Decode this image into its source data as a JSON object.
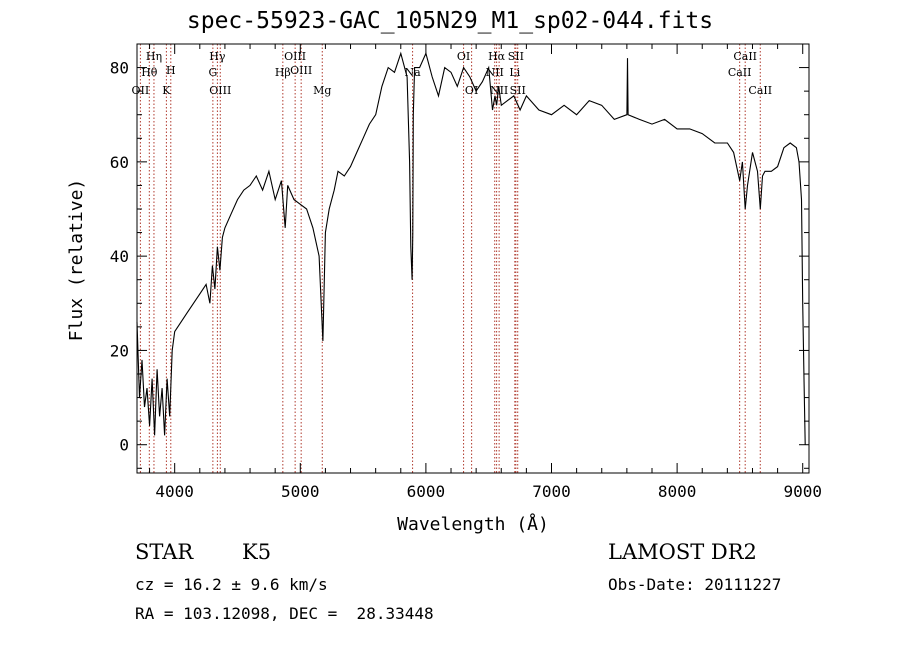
{
  "title": "spec-55923-GAC_105N29_M1_sp02-044.fits",
  "chart_data": {
    "type": "line",
    "title": "spec-55923-GAC_105N29_M1_sp02-044.fits",
    "xlabel": "Wavelength (Å)",
    "ylabel": "Flux (relative)",
    "xlim": [
      3700,
      9050
    ],
    "ylim": [
      -6,
      85
    ],
    "xticks": [
      4000,
      5000,
      6000,
      7000,
      8000,
      9000
    ],
    "yticks": [
      0,
      20,
      40,
      60,
      80
    ],
    "grid": false,
    "series": [
      {
        "x": [
          3700,
          3720,
          3740,
          3760,
          3780,
          3800,
          3820,
          3840,
          3860,
          3880,
          3900,
          3920,
          3940,
          3960,
          3980,
          4000,
          4050,
          4100,
          4150,
          4200,
          4250,
          4280,
          4300,
          4320,
          4340,
          4360,
          4380,
          4400,
          4450,
          4500,
          4550,
          4600,
          4650,
          4700,
          4750,
          4800,
          4850,
          4880,
          4900,
          4950,
          5000,
          5050,
          5100,
          5150,
          5170,
          5180,
          5200,
          5230,
          5270,
          5300,
          5350,
          5400,
          5450,
          5500,
          5550,
          5600,
          5650,
          5700,
          5750,
          5800,
          5850,
          5870,
          5880,
          5890,
          5896,
          5900,
          5910,
          5950,
          6000,
          6050,
          6100,
          6150,
          6200,
          6250,
          6300,
          6350,
          6400,
          6450,
          6500,
          6530,
          6550,
          6563,
          6580,
          6600,
          6650,
          6700,
          6750,
          6800,
          6900,
          7000,
          7100,
          7200,
          7300,
          7400,
          7500,
          7600,
          7605,
          7610,
          7700,
          7800,
          7900,
          8000,
          8100,
          8200,
          8300,
          8400,
          8450,
          8498,
          8520,
          8542,
          8560,
          8600,
          8640,
          8662,
          8680,
          8700,
          8750,
          8800,
          8850,
          8900,
          8950,
          8970,
          8990,
          9000,
          9010,
          9020
        ],
        "y": [
          26,
          10,
          18,
          8,
          12,
          4,
          14,
          2,
          16,
          6,
          12,
          2,
          14,
          6,
          20,
          24,
          26,
          28,
          30,
          32,
          34,
          30,
          38,
          33,
          42,
          37,
          44,
          46,
          49,
          52,
          54,
          55,
          57,
          54,
          58,
          52,
          56,
          46,
          55,
          52,
          51,
          50,
          46,
          40,
          28,
          22,
          45,
          50,
          54,
          58,
          57,
          59,
          62,
          65,
          68,
          70,
          76,
          80,
          79,
          83,
          78,
          60,
          42,
          35,
          45,
          70,
          80,
          80,
          83,
          78,
          74,
          80,
          79,
          76,
          80,
          78,
          75,
          77,
          80,
          71,
          74,
          72,
          76,
          72,
          73,
          74,
          71,
          74,
          71,
          70,
          72,
          70,
          73,
          72,
          69,
          70,
          82,
          70,
          69,
          68,
          69,
          67,
          67,
          66,
          64,
          64,
          62,
          56,
          60,
          50,
          55,
          62,
          58,
          50,
          57,
          58,
          58,
          59,
          63,
          64,
          63,
          60,
          52,
          30,
          14,
          0
        ]
      }
    ],
    "lines": [
      {
        "label": "OII",
        "x": 3727,
        "row": 3
      },
      {
        "label": "Hη",
        "x": 3835,
        "row": 1
      },
      {
        "label": "Hθ",
        "x": 3798,
        "row": 2
      },
      {
        "label": "K",
        "x": 3934,
        "row": 3
      },
      {
        "label": "H",
        "x": 3969,
        "row": 0
      },
      {
        "label": "G",
        "x": 4304,
        "row": 2
      },
      {
        "label": "Hγ",
        "x": 4340,
        "row": 1
      },
      {
        "label": "OIII",
        "x": 4363,
        "row": 3
      },
      {
        "label": "Hβ",
        "x": 4861,
        "row": 2
      },
      {
        "label": "OIII",
        "x": 4959,
        "row": 1
      },
      {
        "label": "OIII",
        "x": 5007,
        "row": 0
      },
      {
        "label": "Mg",
        "x": 5175,
        "row": 3
      },
      {
        "label": "Na",
        "x": 5894,
        "row": 2
      },
      {
        "label": "OI",
        "x": 6300,
        "row": 1
      },
      {
        "label": "OI",
        "x": 6364,
        "row": 3
      },
      {
        "label": "NII",
        "x": 6548,
        "row": 2
      },
      {
        "label": "Hα",
        "x": 6563,
        "row": 1
      },
      {
        "label": "NII",
        "x": 6583,
        "row": 3
      },
      {
        "label": "Li",
        "x": 6708,
        "row": 2
      },
      {
        "label": "SII",
        "x": 6716,
        "row": 1
      },
      {
        "label": "SII",
        "x": 6731,
        "row": 3
      },
      {
        "label": "CaII",
        "x": 8498,
        "row": 2
      },
      {
        "label": "CaII",
        "x": 8542,
        "row": 1
      },
      {
        "label": "CaII",
        "x": 8662,
        "row": 3
      }
    ],
    "line_color": "#b03a2e"
  },
  "info": {
    "class": "STAR",
    "subclass": "K5",
    "survey": "LAMOST DR2",
    "cz": "cz = 16.2 ± 9.6 km/s",
    "obs_date": "Obs-Date: 20111227",
    "coords": "RA = 103.12098, DEC =  28.33448"
  }
}
